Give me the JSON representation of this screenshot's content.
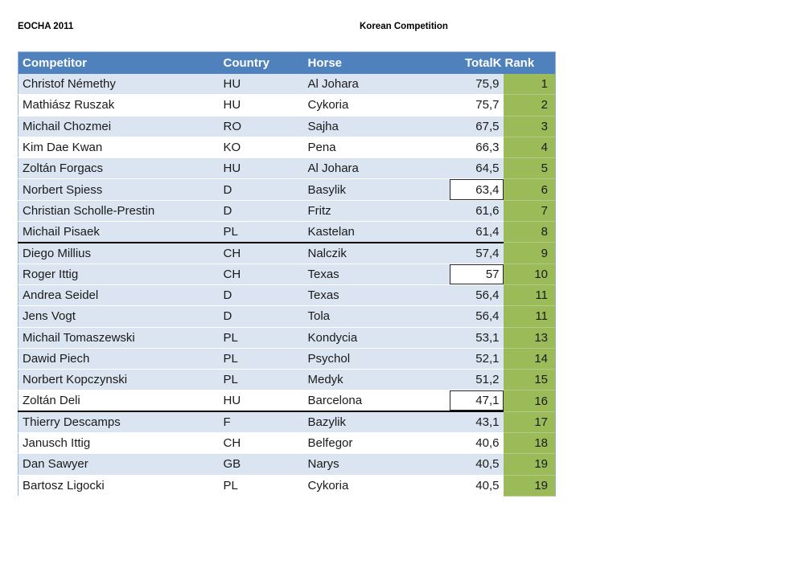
{
  "page": {
    "top_left_label": "EOCHA 2011",
    "title": "Korean Competition"
  },
  "colors": {
    "header_bg": "#4F81BD",
    "header_text": "#FFFFFF",
    "band_bg": "#DBE5F1",
    "rank_bg": "#9BBB59",
    "text": "#1A1A1A"
  },
  "table": {
    "headers": {
      "competitor": "Competitor",
      "country": "Country",
      "horse": "Horse",
      "totalk": "TotalK",
      "rank": "Rank"
    },
    "rows": [
      {
        "competitor": "Christof Némethy",
        "country": "HU",
        "horse": "Al Johara",
        "totalk": "75,9",
        "rank": "1",
        "banded": true,
        "totalk_boxed": false,
        "cutoff_below": false
      },
      {
        "competitor": "Mathiász Ruszak",
        "country": "HU",
        "horse": "Cykoria",
        "totalk": "75,7",
        "rank": "2",
        "banded": false,
        "totalk_boxed": false,
        "cutoff_below": false
      },
      {
        "competitor": "Michail Chozmei",
        "country": "RO",
        "horse": "Sajha",
        "totalk": "67,5",
        "rank": "3",
        "banded": true,
        "totalk_boxed": false,
        "cutoff_below": false
      },
      {
        "competitor": "Kim Dae Kwan",
        "country": "KO",
        "horse": "Pena",
        "totalk": "66,3",
        "rank": "4",
        "banded": false,
        "totalk_boxed": false,
        "cutoff_below": false
      },
      {
        "competitor": "Zoltán Forgacs",
        "country": "HU",
        "horse": "Al Johara",
        "totalk": "64,5",
        "rank": "5",
        "banded": true,
        "totalk_boxed": false,
        "cutoff_below": false
      },
      {
        "competitor": "Norbert Spiess",
        "country": "D",
        "horse": "Basylik",
        "totalk": "63,4",
        "rank": "6",
        "banded": true,
        "totalk_boxed": true,
        "cutoff_below": false
      },
      {
        "competitor": "Christian Scholle-Prestin",
        "country": "D",
        "horse": "Fritz",
        "totalk": "61,6",
        "rank": "7",
        "banded": true,
        "totalk_boxed": false,
        "cutoff_below": false
      },
      {
        "competitor": "Michail Pisaek",
        "country": "PL",
        "horse": "Kastelan",
        "totalk": "61,4",
        "rank": "8",
        "banded": true,
        "totalk_boxed": false,
        "cutoff_below": true
      },
      {
        "competitor": "Diego Millius",
        "country": "CH",
        "horse": "Nalczik",
        "totalk": "57,4",
        "rank": "9",
        "banded": true,
        "totalk_boxed": false,
        "cutoff_below": false
      },
      {
        "competitor": "Roger Ittig",
        "country": "CH",
        "horse": "Texas",
        "totalk": "57",
        "rank": "10",
        "banded": true,
        "totalk_boxed": true,
        "cutoff_below": false
      },
      {
        "competitor": "Andrea Seidel",
        "country": "D",
        "horse": "Texas",
        "totalk": "56,4",
        "rank": "11",
        "banded": true,
        "totalk_boxed": false,
        "cutoff_below": false
      },
      {
        "competitor": "Jens Vogt",
        "country": "D",
        "horse": "Tola",
        "totalk": "56,4",
        "rank": "11",
        "banded": true,
        "totalk_boxed": false,
        "cutoff_below": false
      },
      {
        "competitor": "Michail Tomaszewski",
        "country": "PL",
        "horse": "Kondycia",
        "totalk": "53,1",
        "rank": "13",
        "banded": true,
        "totalk_boxed": false,
        "cutoff_below": false
      },
      {
        "competitor": "Dawid Piech",
        "country": "PL",
        "horse": "Psychol",
        "totalk": "52,1",
        "rank": "14",
        "banded": true,
        "totalk_boxed": false,
        "cutoff_below": false
      },
      {
        "competitor": "Norbert Kopczynski",
        "country": "PL",
        "horse": "Medyk",
        "totalk": "51,2",
        "rank": "15",
        "banded": true,
        "totalk_boxed": false,
        "cutoff_below": false
      },
      {
        "competitor": "Zoltán Deli",
        "country": "HU",
        "horse": "Barcelona",
        "totalk": "47,1",
        "rank": "16",
        "banded": false,
        "totalk_boxed": true,
        "cutoff_below": true
      },
      {
        "competitor": "Thierry Descamps",
        "country": "F",
        "horse": "Bazylik",
        "totalk": "43,1",
        "rank": "17",
        "banded": true,
        "totalk_boxed": false,
        "cutoff_below": false
      },
      {
        "competitor": "Janusch Ittig",
        "country": "CH",
        "horse": "Belfegor",
        "totalk": "40,6",
        "rank": "18",
        "banded": false,
        "totalk_boxed": false,
        "cutoff_below": false
      },
      {
        "competitor": "Dan Sawyer",
        "country": "GB",
        "horse": "Narys",
        "totalk": "40,5",
        "rank": "19",
        "banded": true,
        "totalk_boxed": false,
        "cutoff_below": false
      },
      {
        "competitor": "Bartosz Ligocki",
        "country": "PL",
        "horse": "Cykoria",
        "totalk": "40,5",
        "rank": "19",
        "banded": false,
        "totalk_boxed": false,
        "cutoff_below": false
      }
    ]
  }
}
